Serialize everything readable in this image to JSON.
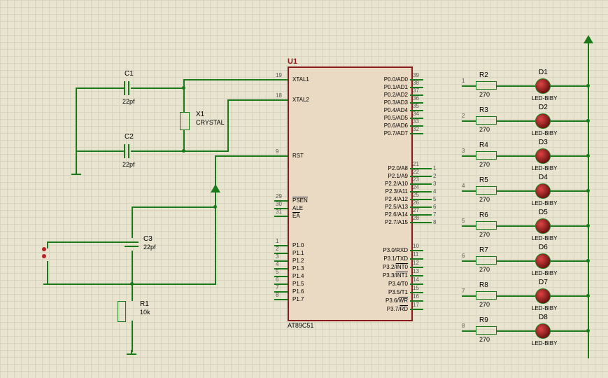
{
  "ic": {
    "ref": "U1",
    "part": "AT89C51",
    "left": [
      {
        "n": "19",
        "l": "XTAL1"
      },
      {
        "n": "18",
        "l": "XTAL2"
      },
      {
        "n": "9",
        "l": "RST"
      },
      {
        "n": "29",
        "l": "PSEN",
        "ol": 1
      },
      {
        "n": "30",
        "l": "ALE"
      },
      {
        "n": "31",
        "l": "EA",
        "ol": 1
      },
      {
        "n": "1",
        "l": "P1.0"
      },
      {
        "n": "2",
        "l": "P1.1"
      },
      {
        "n": "3",
        "l": "P1.2"
      },
      {
        "n": "4",
        "l": "P1.3"
      },
      {
        "n": "5",
        "l": "P1.4"
      },
      {
        "n": "6",
        "l": "P1.5"
      },
      {
        "n": "7",
        "l": "P1.6"
      },
      {
        "n": "8",
        "l": "P1.7"
      }
    ],
    "right": [
      {
        "n": "39",
        "l": "P0.0/AD0"
      },
      {
        "n": "38",
        "l": "P0.1/AD1"
      },
      {
        "n": "37",
        "l": "P0.2/AD2"
      },
      {
        "n": "36",
        "l": "P0.3/AD3"
      },
      {
        "n": "35",
        "l": "P0.4/AD4"
      },
      {
        "n": "34",
        "l": "P0.5/AD5"
      },
      {
        "n": "33",
        "l": "P0.6/AD6"
      },
      {
        "n": "32",
        "l": "P0.7/AD7"
      },
      {
        "n": "21",
        "l": "P2.0/A8"
      },
      {
        "n": "22",
        "l": "P2.1/A9"
      },
      {
        "n": "23",
        "l": "P2.2/A10"
      },
      {
        "n": "24",
        "l": "P2.3/A11"
      },
      {
        "n": "25",
        "l": "P2.4/A12"
      },
      {
        "n": "26",
        "l": "P2.5/A13"
      },
      {
        "n": "27",
        "l": "P2.6/A14"
      },
      {
        "n": "28",
        "l": "P2.7/A15"
      },
      {
        "n": "10",
        "l": "P3.0/RXD"
      },
      {
        "n": "11",
        "l": "P3.1/TXD"
      },
      {
        "n": "12",
        "l": "P3.2/INT0",
        "ol": 1
      },
      {
        "n": "13",
        "l": "P3.3/INT1",
        "ol": 1
      },
      {
        "n": "14",
        "l": "P3.4/T0"
      },
      {
        "n": "15",
        "l": "P3.5/T1"
      },
      {
        "n": "16",
        "l": "P3.6/WR",
        "ol": 1
      },
      {
        "n": "17",
        "l": "P3.7/RD",
        "ol": 1
      }
    ]
  },
  "c": [
    {
      "r": "C1",
      "v": "22pf"
    },
    {
      "r": "C2",
      "v": "22pf"
    },
    {
      "r": "C3",
      "v": "22pf"
    }
  ],
  "r": [
    {
      "r": "R1",
      "v": "10k"
    },
    {
      "r": "R2",
      "v": "270"
    },
    {
      "r": "R3",
      "v": "270"
    },
    {
      "r": "R4",
      "v": "270"
    },
    {
      "r": "R5",
      "v": "270"
    },
    {
      "r": "R6",
      "v": "270"
    },
    {
      "r": "R7",
      "v": "270"
    },
    {
      "r": "R8",
      "v": "270"
    },
    {
      "r": "R9",
      "v": "270"
    }
  ],
  "d": [
    {
      "r": "D1",
      "v": "LED-BIBY"
    },
    {
      "r": "D2",
      "v": "LED-BIBY"
    },
    {
      "r": "D3",
      "v": "LED-BIBY"
    },
    {
      "r": "D4",
      "v": "LED-BIBY"
    },
    {
      "r": "D5",
      "v": "LED-BIBY"
    },
    {
      "r": "D6",
      "v": "LED-BIBY"
    },
    {
      "r": "D7",
      "v": "LED-BIBY"
    },
    {
      "r": "D8",
      "v": "LED-BIBY"
    }
  ],
  "x": {
    "r": "X1",
    "v": "CRYSTAL"
  }
}
